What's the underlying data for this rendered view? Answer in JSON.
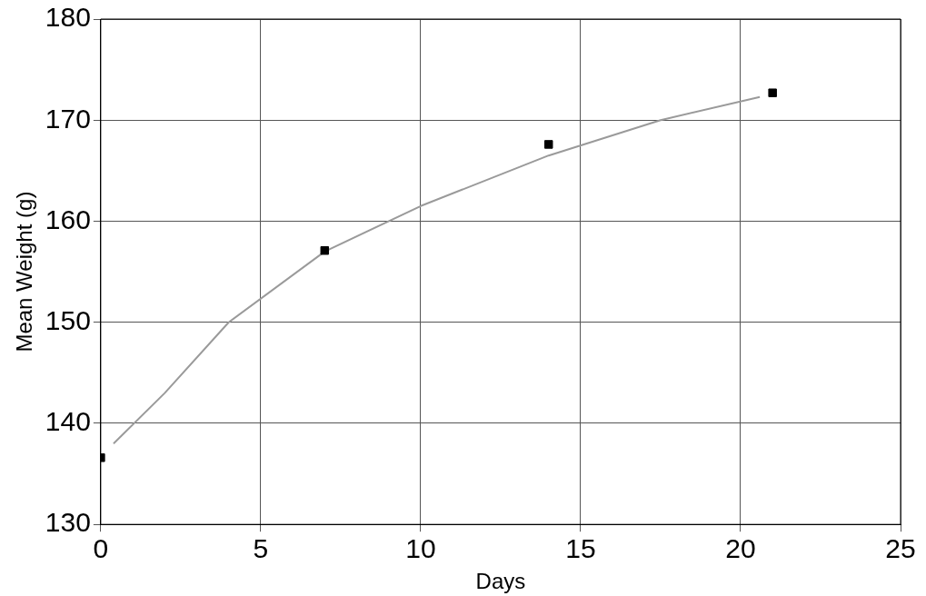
{
  "chart_data": {
    "type": "scatter",
    "xlabel": "Days",
    "ylabel": "Mean Weight (g)",
    "xlim": [
      0,
      25
    ],
    "xticks": [
      0,
      5,
      10,
      15,
      20,
      25
    ],
    "ylim": [
      130,
      180
    ],
    "yticks": [
      130,
      140,
      150,
      160,
      170,
      180
    ],
    "grid": true,
    "legend": false,
    "series": [
      {
        "marker": "square",
        "color": "#000000",
        "x": [
          0,
          7,
          14,
          21
        ],
        "values": [
          136.6,
          157.1,
          167.6,
          172.7
        ]
      },
      {
        "type": "line",
        "marker": "none",
        "color": "#9a9a9a",
        "x": [
          0.4,
          2,
          4,
          7,
          10,
          14,
          17.5,
          20.6
        ],
        "values": [
          138,
          143,
          150,
          157,
          161.5,
          166.5,
          170,
          172.3
        ]
      }
    ]
  }
}
